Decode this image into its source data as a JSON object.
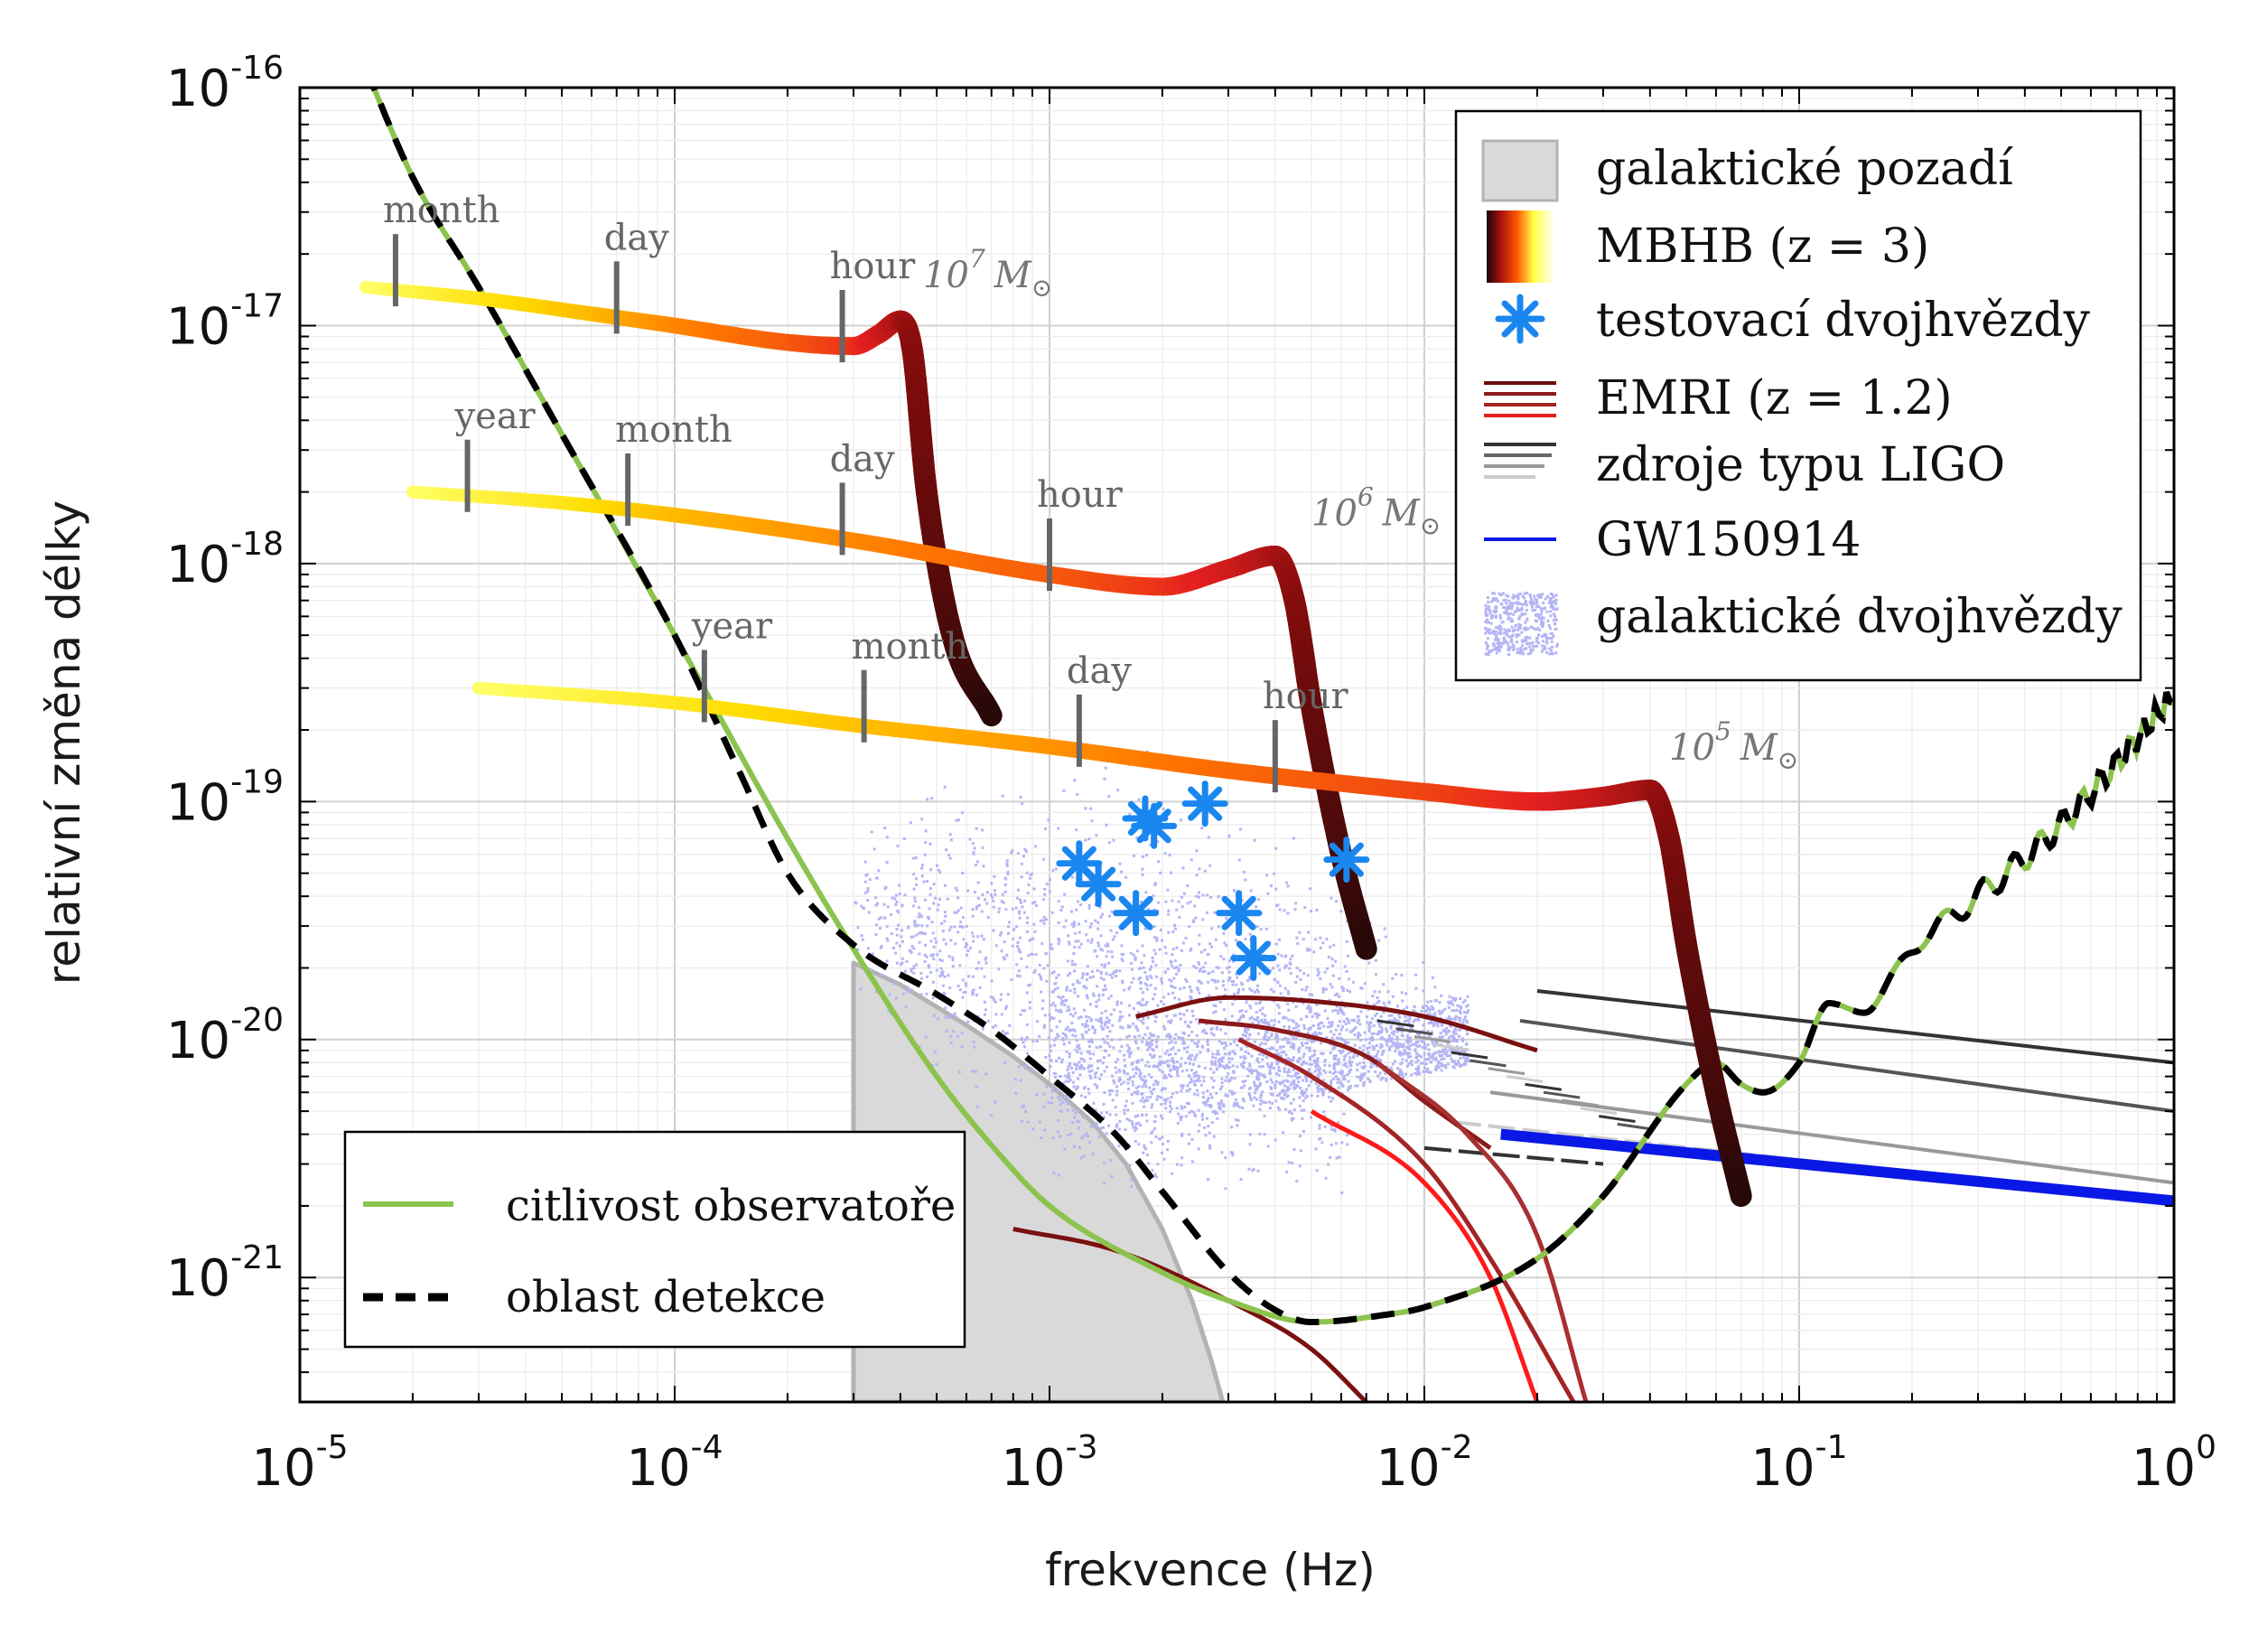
{
  "chart_data": {
    "type": "line",
    "xlabel": "frekvence (Hz)",
    "ylabel": "relativní změna délky",
    "x_scale": "log",
    "y_scale": "log",
    "xlim": [
      1e-05,
      1
    ],
    "ylim": [
      3e-22,
      1e-16
    ],
    "x_ticks": [
      {
        "base": "10",
        "exp": "-5",
        "value": 1e-05
      },
      {
        "base": "10",
        "exp": "-4",
        "value": 0.0001
      },
      {
        "base": "10",
        "exp": "-3",
        "value": 0.001
      },
      {
        "base": "10",
        "exp": "-2",
        "value": 0.01
      },
      {
        "base": "10",
        "exp": "-1",
        "value": 0.1
      },
      {
        "base": "10",
        "exp": "0",
        "value": 1
      }
    ],
    "y_ticks": [
      {
        "base": "10",
        "exp": "-16",
        "value": 1e-16
      },
      {
        "base": "10",
        "exp": "-17",
        "value": 1e-17
      },
      {
        "base": "10",
        "exp": "-18",
        "value": 1e-18
      },
      {
        "base": "10",
        "exp": "-19",
        "value": 1e-19
      },
      {
        "base": "10",
        "exp": "-20",
        "value": 1e-20
      },
      {
        "base": "10",
        "exp": "-21",
        "value": 1e-21
      }
    ],
    "grid": true,
    "legend_main": [
      {
        "key": "galactic_background",
        "label": "galaktické pozadí"
      },
      {
        "key": "mbhb",
        "label": "MBHB (z = 3)"
      },
      {
        "key": "test_binaries",
        "label": "testovací dvojhvězdy"
      },
      {
        "key": "emri",
        "label": "EMRI (z = 1.2)"
      },
      {
        "key": "ligo",
        "label": "zdroje typu LIGO"
      },
      {
        "key": "gw150914",
        "label": "GW150914"
      },
      {
        "key": "galactic_binaries",
        "label": "galaktické dvojhvězdy"
      }
    ],
    "legend_main_position": "top-right",
    "legend_lower": [
      {
        "key": "sensitivity",
        "label": "citlivost observatoře"
      },
      {
        "key": "detection",
        "label": "oblast detekce"
      }
    ],
    "legend_lower_position": "bottom-left",
    "colors": {
      "sensitivity": "#8cc34e",
      "detection": "#000000",
      "galactic_background_fill": "#d9d9d9",
      "galactic_background_edge": "#b3b3b3",
      "test_binaries": "#1a86f0",
      "galactic_binaries": "#b4b4f5",
      "gw150914": "#0a18e6",
      "emri": [
        "#7a1010",
        "#8b1a1a",
        "#a32424",
        "#ff1a1a"
      ],
      "ligo": [
        "#333333",
        "#555555",
        "#999999",
        "#cccccc"
      ],
      "mbhb_gradient": [
        "#ffff66",
        "#ffcc00",
        "#ff6600",
        "#e62020",
        "#8b0d0d",
        "#3a0a0a"
      ]
    },
    "sensitivity_curve": [
      [
        1.5e-05,
        1.2e-16
      ],
      [
        2e-05,
        4.2e-17
      ],
      [
        3e-05,
        1.45e-17
      ],
      [
        5e-05,
        3.5e-18
      ],
      [
        0.0001,
        5e-19
      ],
      [
        0.0002,
        7e-20
      ],
      [
        0.0003,
        2.4e-20
      ],
      [
        0.0005,
        7e-21
      ],
      [
        0.0007,
        3.6e-21
      ],
      [
        0.001,
        2e-21
      ],
      [
        0.002,
        1.05e-21
      ],
      [
        0.003,
        8e-22
      ],
      [
        0.005,
        6.5e-22
      ],
      [
        0.008,
        7e-22
      ],
      [
        0.01,
        7.5e-22
      ],
      [
        0.02,
        1.2e-21
      ],
      [
        0.03,
        2.2e-21
      ],
      [
        0.05,
        6.5e-21
      ],
      [
        0.06,
        8e-21
      ],
      [
        0.07,
        6.5e-21
      ],
      [
        0.08,
        6e-21
      ],
      [
        0.1,
        8e-21
      ],
      [
        0.12,
        1.4e-20
      ],
      [
        0.15,
        1.35e-20
      ],
      [
        0.2,
        2.4e-20
      ],
      [
        0.3,
        4e-20
      ],
      [
        0.5,
        8e-20
      ],
      [
        1,
        2.8e-19
      ]
    ],
    "sensitivity_ripple": true,
    "detection_region": [
      [
        1.5e-05,
        1.2e-16
      ],
      [
        2e-05,
        4.2e-17
      ],
      [
        3e-05,
        1.45e-17
      ],
      [
        5e-05,
        3.5e-18
      ],
      [
        0.0001,
        5e-19
      ],
      [
        0.00015,
        1.3e-19
      ],
      [
        0.0002,
        5e-20
      ],
      [
        0.0003,
        2.5e-20
      ],
      [
        0.0005,
        1.55e-20
      ],
      [
        0.0007,
        1.1e-20
      ],
      [
        0.001,
        7e-21
      ],
      [
        0.0015,
        4e-21
      ],
      [
        0.002,
        2.3e-21
      ],
      [
        0.003,
        1.05e-21
      ],
      [
        0.004,
        7.3e-22
      ],
      [
        0.005,
        6.5e-22
      ],
      [
        0.008,
        7e-22
      ],
      [
        0.01,
        7.5e-22
      ],
      [
        0.02,
        1.2e-21
      ],
      [
        0.03,
        2.2e-21
      ],
      [
        0.05,
        6.5e-21
      ],
      [
        0.06,
        8e-21
      ],
      [
        0.07,
        6.5e-21
      ],
      [
        0.08,
        6e-21
      ],
      [
        0.1,
        8e-21
      ],
      [
        0.12,
        1.4e-20
      ],
      [
        0.15,
        1.35e-20
      ],
      [
        0.2,
        2.4e-20
      ],
      [
        0.3,
        4e-20
      ],
      [
        0.5,
        8e-20
      ],
      [
        1,
        2.8e-19
      ]
    ],
    "galactic_background": [
      [
        0.0003,
        3e-22
      ],
      [
        0.0003,
        2.1e-20
      ],
      [
        0.0004,
        1.7e-20
      ],
      [
        0.0006,
        1.15e-20
      ],
      [
        0.0008,
        8.5e-21
      ],
      [
        0.001,
        6.5e-21
      ],
      [
        0.0013,
        4.5e-21
      ],
      [
        0.0016,
        3e-21
      ],
      [
        0.002,
        1.6e-21
      ],
      [
        0.0024,
        8e-22
      ],
      [
        0.0027,
        4.5e-22
      ],
      [
        0.0029,
        3e-22
      ]
    ],
    "mbhb": [
      {
        "mass_label": {
          "base": "10",
          "exp": "7",
          "unit": "M",
          "x": 0.00046,
          "y": 1.45e-17
        },
        "track": [
          [
            1.5e-05,
            1.45e-17
          ],
          [
            3e-05,
            1.3e-17
          ],
          [
            6e-05,
            1.12e-17
          ],
          [
            0.0001,
            1e-17
          ],
          [
            0.0002,
            8.5e-18
          ],
          [
            0.0003,
            8.2e-18
          ],
          [
            0.00035,
            9.2e-18
          ],
          [
            0.0004,
            1.05e-17
          ],
          [
            0.00043,
            8e-18
          ],
          [
            0.00047,
            2e-18
          ],
          [
            0.00055,
            5e-19
          ],
          [
            0.0007,
            2.3e-19
          ]
        ],
        "ticks": [
          {
            "label": "month",
            "x": 1.8e-05
          },
          {
            "label": "day",
            "x": 7e-05
          },
          {
            "label": "hour",
            "x": 0.00028
          }
        ]
      },
      {
        "mass_label": {
          "base": "10",
          "exp": "6",
          "unit": "M",
          "x": 0.005,
          "y": 1.45e-18
        },
        "track": [
          [
            2e-05,
            2e-18
          ],
          [
            5e-05,
            1.8e-18
          ],
          [
            0.0001,
            1.6e-18
          ],
          [
            0.0003,
            1.25e-18
          ],
          [
            0.001,
            9e-19
          ],
          [
            0.002,
            8e-19
          ],
          [
            0.003,
            9.5e-19
          ],
          [
            0.004,
            1.08e-18
          ],
          [
            0.0045,
            7e-19
          ],
          [
            0.005,
            2.5e-19
          ],
          [
            0.006,
            6e-20
          ],
          [
            0.007,
            2.4e-20
          ]
        ],
        "ticks": [
          {
            "label": "year",
            "x": 2.8e-05
          },
          {
            "label": "month",
            "x": 7.5e-05
          },
          {
            "label": "day",
            "x": 0.00028
          },
          {
            "label": "hour",
            "x": 0.001
          }
        ]
      },
      {
        "mass_label": {
          "base": "10",
          "exp": "5",
          "unit": "M",
          "x": 0.045,
          "y": 1.5e-19
        },
        "track": [
          [
            3e-05,
            3e-19
          ],
          [
            0.0001,
            2.6e-19
          ],
          [
            0.0003,
            2.1e-19
          ],
          [
            0.001,
            1.7e-19
          ],
          [
            0.003,
            1.35e-19
          ],
          [
            0.01,
            1.1e-19
          ],
          [
            0.02,
            1e-19
          ],
          [
            0.03,
            1.05e-19
          ],
          [
            0.04,
            1.12e-19
          ],
          [
            0.045,
            7e-20
          ],
          [
            0.05,
            2.5e-20
          ],
          [
            0.06,
            6e-21
          ],
          [
            0.07,
            2.2e-21
          ]
        ],
        "ticks": [
          {
            "label": "year",
            "x": 0.00012
          },
          {
            "label": "month",
            "x": 0.00032
          },
          {
            "label": "day",
            "x": 0.0012
          },
          {
            "label": "hour",
            "x": 0.004
          }
        ]
      }
    ],
    "test_binaries": [
      [
        0.0012,
        5.5e-20
      ],
      [
        0.00135,
        4.5e-20
      ],
      [
        0.0017,
        3.4e-20
      ],
      [
        0.0018,
        8.5e-20
      ],
      [
        0.0019,
        7.9e-20
      ],
      [
        0.0026,
        9.8e-20
      ],
      [
        0.0032,
        3.4e-20
      ],
      [
        0.0035,
        2.2e-20
      ],
      [
        0.0062,
        5.7e-20
      ]
    ],
    "galactic_binaries_cloud": {
      "xlim": [
        0.0003,
        0.013
      ],
      "top": 2e-19,
      "bottom": 2.5e-21,
      "points": 2600
    },
    "emri": [
      [
        [
          0.0017,
          1.25e-20
        ],
        [
          0.003,
          1.5e-20
        ],
        [
          0.005,
          1.45e-20
        ],
        [
          0.01,
          1.25e-20
        ],
        [
          0.02,
          9e-21
        ]
      ],
      [
        [
          0.0025,
          1.2e-20
        ],
        [
          0.004,
          1.1e-20
        ],
        [
          0.007,
          8.5e-21
        ],
        [
          0.01,
          5.5e-21
        ],
        [
          0.015,
          3.5e-21
        ]
      ],
      [
        [
          0.0032,
          1e-20
        ],
        [
          0.005,
          7e-21
        ],
        [
          0.01,
          3e-21
        ],
        [
          0.015,
          1.2e-21
        ],
        [
          0.025,
          3e-22
        ]
      ],
      [
        [
          0.005,
          5e-21
        ],
        [
          0.01,
          2.5e-21
        ],
        [
          0.015,
          1e-21
        ],
        [
          0.02,
          3e-22
        ]
      ],
      [
        [
          0.0008,
          1.6e-21
        ],
        [
          0.0015,
          1.3e-21
        ],
        [
          0.003,
          8e-22
        ],
        [
          0.005,
          5e-22
        ],
        [
          0.007,
          3e-22
        ]
      ],
      [
        [
          0.0075,
          8e-21
        ],
        [
          0.013,
          4e-21
        ],
        [
          0.02,
          1.5e-21
        ],
        [
          0.027,
          3e-22
        ]
      ]
    ],
    "ligo": [
      [
        [
          0.02,
          1.6e-20
        ],
        [
          1,
          8e-21
        ]
      ],
      [
        [
          0.018,
          1.2e-20
        ],
        [
          1,
          5e-21
        ]
      ],
      [
        [
          0.015,
          6e-21
        ],
        [
          1,
          2.5e-21
        ]
      ],
      [
        [
          0.012,
          4.5e-21
        ],
        [
          1,
          2.1e-21
        ]
      ],
      [
        [
          0.01,
          3.5e-21
        ],
        [
          0.03,
          3e-21
        ]
      ]
    ],
    "gw150914": [
      [
        0.016,
        4e-21
      ],
      [
        1,
        2.1e-21
      ]
    ]
  }
}
